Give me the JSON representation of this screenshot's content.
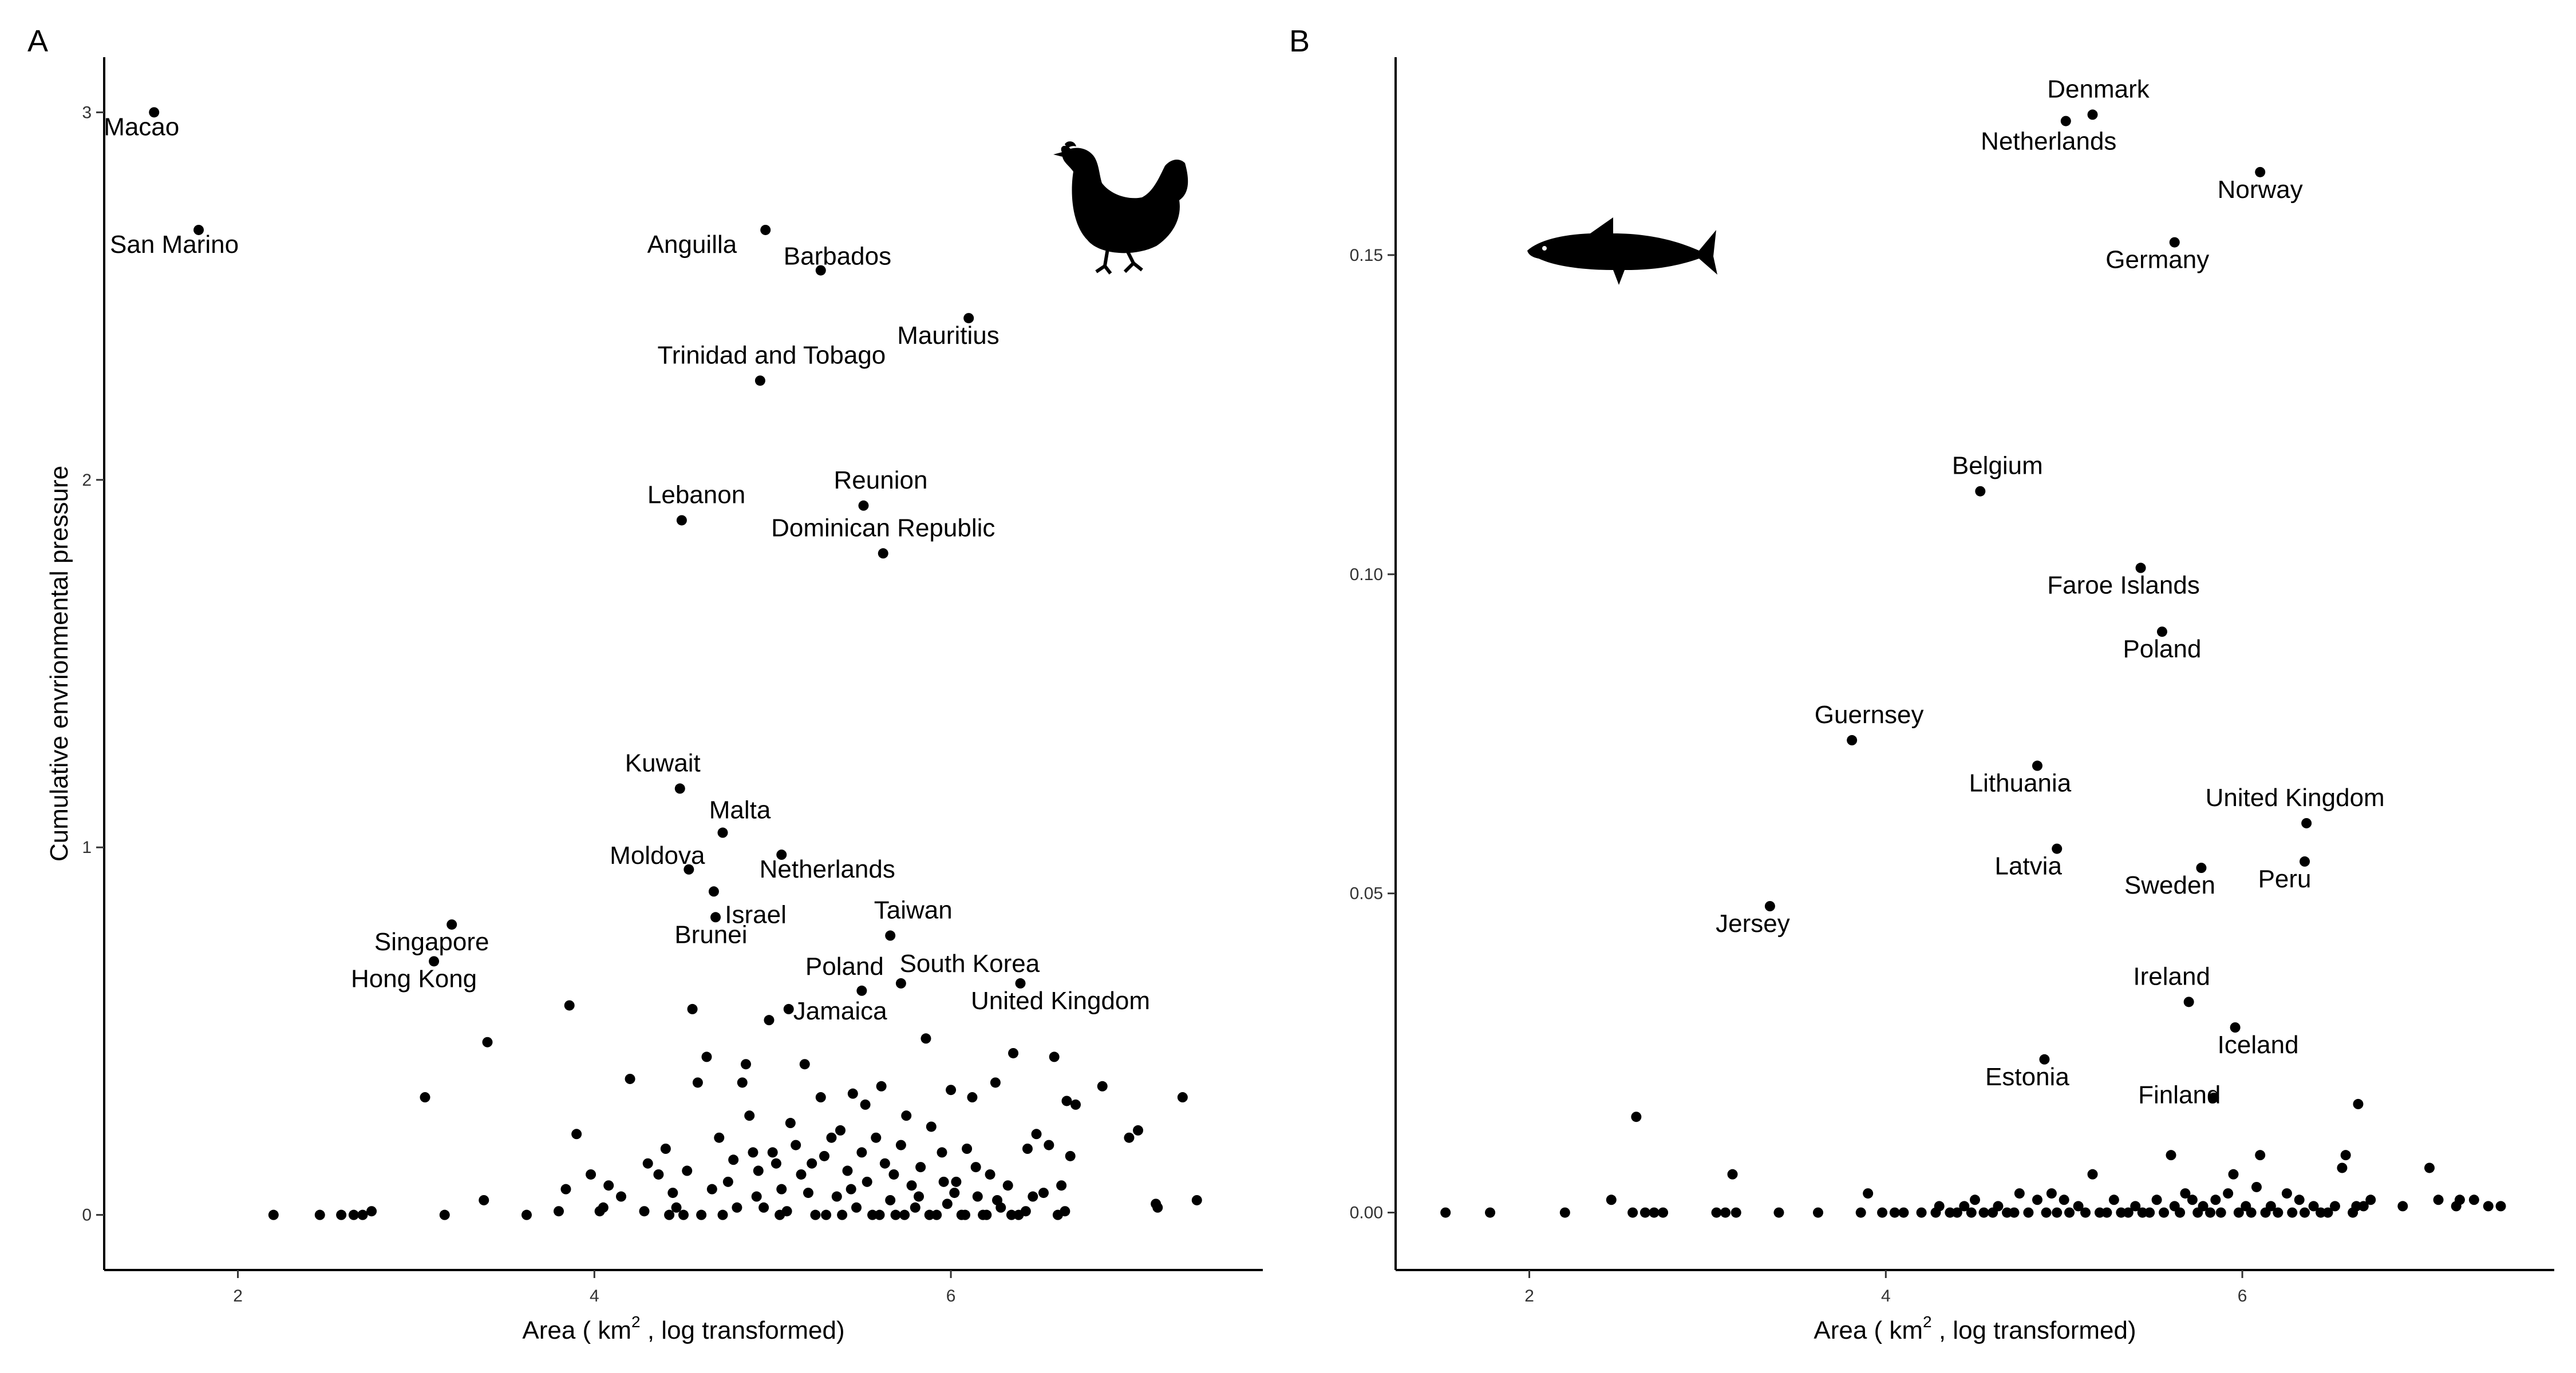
{
  "chart_data": [
    {
      "type": "scatter",
      "panel": "A",
      "animal_icon": "chicken-icon",
      "title": "",
      "xlabel": {
        "prefix": "Area ( ",
        "unit": "km",
        "sup": "2",
        "suffix": " , log transformed)"
      },
      "ylabel": "Cumulative envrionmental pressure",
      "xlim": [
        1.25,
        7.75
      ],
      "ylim": [
        -0.15,
        3.15
      ],
      "xticks": [
        2,
        4,
        6
      ],
      "yticks": [
        0,
        1,
        2,
        3
      ],
      "grid": false,
      "labeled_points": [
        {
          "label": "Macao",
          "x": 1.53,
          "y": 3.0
        },
        {
          "label": "San Marino",
          "x": 1.78,
          "y": 2.68
        },
        {
          "label": "Anguilla",
          "x": 4.96,
          "y": 2.68
        },
        {
          "label": "Barbados",
          "x": 5.27,
          "y": 2.57
        },
        {
          "label": "Mauritius",
          "x": 6.1,
          "y": 2.44
        },
        {
          "label": "Trinidad and Tobago",
          "x": 4.93,
          "y": 2.27
        },
        {
          "label": "Lebanon",
          "x": 4.49,
          "y": 1.89
        },
        {
          "label": "Reunion",
          "x": 5.51,
          "y": 1.93
        },
        {
          "label": "Dominican Republic",
          "x": 5.62,
          "y": 1.8
        },
        {
          "label": "Kuwait",
          "x": 4.48,
          "y": 1.16
        },
        {
          "label": "Malta",
          "x": 4.72,
          "y": 1.04
        },
        {
          "label": "Moldova",
          "x": 4.53,
          "y": 0.94
        },
        {
          "label": "Netherlands",
          "x": 5.05,
          "y": 0.98
        },
        {
          "label": "Israel",
          "x": 4.68,
          "y": 0.81
        },
        {
          "label": "Brunei",
          "x": 4.67,
          "y": 0.88
        },
        {
          "label": "Singapore",
          "x": 3.2,
          "y": 0.79
        },
        {
          "label": "Hong Kong",
          "x": 3.1,
          "y": 0.69
        },
        {
          "label": "Taiwan",
          "x": 5.66,
          "y": 0.76
        },
        {
          "label": "Poland",
          "x": 5.5,
          "y": 0.61
        },
        {
          "label": "South Korea",
          "x": 5.72,
          "y": 0.63
        },
        {
          "label": "Jamaica",
          "x": 5.09,
          "y": 0.56
        },
        {
          "label": "United Kingdom",
          "x": 6.39,
          "y": 0.63
        }
      ],
      "points": [
        [
          2.2,
          0.0
        ],
        [
          2.46,
          0.0
        ],
        [
          2.58,
          0.0
        ],
        [
          2.65,
          0.0
        ],
        [
          2.7,
          0.0
        ],
        [
          2.75,
          0.01
        ],
        [
          3.05,
          0.32
        ],
        [
          3.16,
          0.0
        ],
        [
          3.4,
          0.47
        ],
        [
          3.38,
          0.04
        ],
        [
          3.62,
          0.0
        ],
        [
          3.8,
          0.01
        ],
        [
          3.84,
          0.07
        ],
        [
          3.86,
          0.57
        ],
        [
          3.9,
          0.22
        ],
        [
          3.98,
          0.11
        ],
        [
          4.03,
          0.01
        ],
        [
          4.08,
          0.08
        ],
        [
          4.2,
          0.37
        ],
        [
          4.3,
          0.14
        ],
        [
          4.28,
          0.01
        ],
        [
          4.36,
          0.11
        ],
        [
          4.4,
          0.18
        ],
        [
          4.44,
          0.06
        ],
        [
          4.46,
          0.02
        ],
        [
          4.5,
          0.0
        ],
        [
          4.52,
          0.12
        ],
        [
          4.55,
          0.56
        ],
        [
          4.58,
          0.36
        ],
        [
          4.63,
          0.43
        ],
        [
          4.66,
          0.07
        ],
        [
          4.7,
          0.21
        ],
        [
          4.72,
          0.0
        ],
        [
          4.75,
          0.09
        ],
        [
          4.8,
          0.02
        ],
        [
          4.83,
          0.36
        ],
        [
          4.87,
          0.27
        ],
        [
          4.89,
          0.17
        ],
        [
          4.92,
          0.12
        ],
        [
          4.95,
          0.02
        ],
        [
          4.98,
          0.53
        ],
        [
          5.0,
          0.17
        ],
        [
          5.02,
          0.14
        ],
        [
          5.05,
          0.07
        ],
        [
          5.08,
          0.01
        ],
        [
          5.1,
          0.25
        ],
        [
          5.13,
          0.19
        ],
        [
          5.16,
          0.11
        ],
        [
          5.2,
          0.06
        ],
        [
          5.24,
          0.0
        ],
        [
          5.27,
          0.32
        ],
        [
          5.29,
          0.16
        ],
        [
          5.33,
          0.21
        ],
        [
          5.36,
          0.05
        ],
        [
          5.39,
          0.0
        ],
        [
          5.42,
          0.12
        ],
        [
          5.45,
          0.33
        ],
        [
          5.47,
          0.02
        ],
        [
          5.5,
          0.17
        ],
        [
          5.53,
          0.09
        ],
        [
          5.56,
          0.0
        ],
        [
          5.58,
          0.21
        ],
        [
          5.61,
          0.35
        ],
        [
          5.63,
          0.14
        ],
        [
          5.66,
          0.04
        ],
        [
          5.69,
          0.0
        ],
        [
          5.72,
          0.19
        ],
        [
          5.75,
          0.27
        ],
        [
          5.78,
          0.08
        ],
        [
          5.8,
          0.02
        ],
        [
          5.83,
          0.13
        ],
        [
          5.86,
          0.48
        ],
        [
          5.89,
          0.24
        ],
        [
          5.92,
          0.0
        ],
        [
          5.95,
          0.17
        ],
        [
          5.98,
          0.03
        ],
        [
          6.0,
          0.34
        ],
        [
          6.03,
          0.09
        ],
        [
          6.06,
          0.0
        ],
        [
          6.09,
          0.18
        ],
        [
          6.12,
          0.32
        ],
        [
          6.15,
          0.05
        ],
        [
          6.18,
          0.0
        ],
        [
          6.22,
          0.11
        ],
        [
          6.25,
          0.36
        ],
        [
          6.28,
          0.02
        ],
        [
          6.32,
          0.08
        ],
        [
          6.35,
          0.44
        ],
        [
          6.38,
          0.0
        ],
        [
          6.43,
          0.18
        ],
        [
          6.48,
          0.22
        ],
        [
          6.52,
          0.06
        ],
        [
          6.55,
          0.19
        ],
        [
          6.58,
          0.43
        ],
        [
          6.62,
          0.08
        ],
        [
          6.65,
          0.31
        ],
        [
          6.67,
          0.16
        ],
        [
          6.7,
          0.3
        ],
        [
          6.85,
          0.35
        ],
        [
          7.0,
          0.21
        ],
        [
          7.05,
          0.23
        ],
        [
          7.15,
          0.03
        ],
        [
          7.16,
          0.02
        ],
        [
          7.3,
          0.32
        ],
        [
          7.38,
          0.04
        ],
        [
          4.05,
          0.02
        ],
        [
          4.15,
          0.05
        ],
        [
          4.42,
          0.0
        ],
        [
          4.6,
          0.0
        ],
        [
          4.78,
          0.15
        ],
        [
          4.85,
          0.41
        ],
        [
          4.91,
          0.05
        ],
        [
          5.04,
          0.0
        ],
        [
          5.18,
          0.41
        ],
        [
          5.22,
          0.14
        ],
        [
          5.3,
          0.0
        ],
        [
          5.38,
          0.23
        ],
        [
          5.44,
          0.07
        ],
        [
          5.52,
          0.3
        ],
        [
          5.6,
          0.0
        ],
        [
          5.68,
          0.11
        ],
        [
          5.74,
          0.0
        ],
        [
          5.82,
          0.05
        ],
        [
          5.88,
          0.0
        ],
        [
          5.96,
          0.09
        ],
        [
          6.02,
          0.06
        ],
        [
          6.08,
          0.0
        ],
        [
          6.14,
          0.13
        ],
        [
          6.2,
          0.0
        ],
        [
          6.26,
          0.04
        ],
        [
          6.34,
          0.0
        ],
        [
          6.42,
          0.01
        ],
        [
          6.46,
          0.05
        ],
        [
          6.6,
          0.0
        ],
        [
          6.64,
          0.01
        ]
      ]
    },
    {
      "type": "scatter",
      "panel": "B",
      "animal_icon": "salmon-icon",
      "title": "",
      "xlabel": {
        "prefix": "Area ( ",
        "unit": "km",
        "sup": "2",
        "suffix": " , log transformed)"
      },
      "ylabel": "",
      "xlim": [
        1.25,
        7.75
      ],
      "ylim": [
        -0.009,
        0.181
      ],
      "xticks": [
        2,
        4,
        6
      ],
      "yticks": [
        0.0,
        0.05,
        0.1,
        0.15
      ],
      "ytick_labels": [
        "0.00",
        "0.05",
        "0.10",
        "0.15"
      ],
      "grid": false,
      "labeled_points": [
        {
          "label": "Denmark",
          "x": 5.16,
          "y": 0.172
        },
        {
          "label": "Netherlands",
          "x": 5.01,
          "y": 0.171
        },
        {
          "label": "Norway",
          "x": 6.1,
          "y": 0.163
        },
        {
          "label": "Germany",
          "x": 5.62,
          "y": 0.152
        },
        {
          "label": "Belgium",
          "x": 4.53,
          "y": 0.113
        },
        {
          "label": "Faroe Islands",
          "x": 5.43,
          "y": 0.101
        },
        {
          "label": "Poland",
          "x": 5.55,
          "y": 0.091
        },
        {
          "label": "Guernsey",
          "x": 3.81,
          "y": 0.074
        },
        {
          "label": "Lithuania",
          "x": 4.85,
          "y": 0.07
        },
        {
          "label": "United Kingdom",
          "x": 6.36,
          "y": 0.061
        },
        {
          "label": "Latvia",
          "x": 4.96,
          "y": 0.057
        },
        {
          "label": "Sweden",
          "x": 5.77,
          "y": 0.054
        },
        {
          "label": "Peru",
          "x": 6.35,
          "y": 0.055
        },
        {
          "label": "Jersey",
          "x": 3.35,
          "y": 0.048
        },
        {
          "label": "Ireland",
          "x": 5.7,
          "y": 0.033
        },
        {
          "label": "Iceland",
          "x": 5.96,
          "y": 0.029
        },
        {
          "label": "Estonia",
          "x": 4.89,
          "y": 0.024
        },
        {
          "label": "Finland",
          "x": 5.84,
          "y": 0.018
        }
      ],
      "points": [
        [
          1.53,
          0.0
        ],
        [
          1.78,
          0.0
        ],
        [
          2.2,
          0.0
        ],
        [
          2.46,
          0.002
        ],
        [
          2.58,
          0.0
        ],
        [
          2.6,
          0.015
        ],
        [
          2.65,
          0.0
        ],
        [
          2.7,
          0.0
        ],
        [
          2.75,
          0.0
        ],
        [
          3.05,
          0.0
        ],
        [
          3.1,
          0.0
        ],
        [
          3.14,
          0.006
        ],
        [
          3.16,
          0.0
        ],
        [
          3.4,
          0.0
        ],
        [
          3.62,
          0.0
        ],
        [
          3.86,
          0.0
        ],
        [
          3.9,
          0.003
        ],
        [
          3.98,
          0.0
        ],
        [
          4.05,
          0.0
        ],
        [
          4.1,
          0.0
        ],
        [
          4.2,
          0.0
        ],
        [
          4.28,
          0.0
        ],
        [
          4.3,
          0.001
        ],
        [
          4.36,
          0.0
        ],
        [
          4.4,
          0.0
        ],
        [
          4.44,
          0.001
        ],
        [
          4.48,
          0.0
        ],
        [
          4.5,
          0.002
        ],
        [
          4.55,
          0.0
        ],
        [
          4.6,
          0.0
        ],
        [
          4.63,
          0.001
        ],
        [
          4.68,
          0.0
        ],
        [
          4.72,
          0.0
        ],
        [
          4.75,
          0.003
        ],
        [
          4.8,
          0.0
        ],
        [
          4.85,
          0.002
        ],
        [
          4.9,
          0.0
        ],
        [
          4.93,
          0.003
        ],
        [
          4.96,
          0.0
        ],
        [
          5.0,
          0.002
        ],
        [
          5.03,
          0.0
        ],
        [
          5.08,
          0.001
        ],
        [
          5.12,
          0.0
        ],
        [
          5.16,
          0.006
        ],
        [
          5.2,
          0.0
        ],
        [
          5.24,
          0.0
        ],
        [
          5.28,
          0.002
        ],
        [
          5.32,
          0.0
        ],
        [
          5.36,
          0.0
        ],
        [
          5.4,
          0.001
        ],
        [
          5.44,
          0.0
        ],
        [
          5.48,
          0.0
        ],
        [
          5.52,
          0.002
        ],
        [
          5.56,
          0.0
        ],
        [
          5.6,
          0.009
        ],
        [
          5.62,
          0.001
        ],
        [
          5.65,
          0.0
        ],
        [
          5.68,
          0.003
        ],
        [
          5.72,
          0.002
        ],
        [
          5.75,
          0.0
        ],
        [
          5.78,
          0.001
        ],
        [
          5.82,
          0.0
        ],
        [
          5.85,
          0.002
        ],
        [
          5.88,
          0.0
        ],
        [
          5.92,
          0.003
        ],
        [
          5.95,
          0.006
        ],
        [
          5.98,
          0.0
        ],
        [
          6.02,
          0.001
        ],
        [
          6.05,
          0.0
        ],
        [
          6.08,
          0.004
        ],
        [
          6.1,
          0.009
        ],
        [
          6.13,
          0.0
        ],
        [
          6.16,
          0.001
        ],
        [
          6.2,
          0.0
        ],
        [
          6.25,
          0.003
        ],
        [
          6.28,
          0.0
        ],
        [
          6.32,
          0.002
        ],
        [
          6.35,
          0.0
        ],
        [
          6.4,
          0.001
        ],
        [
          6.44,
          0.0
        ],
        [
          6.48,
          0.0
        ],
        [
          6.52,
          0.001
        ],
        [
          6.56,
          0.007
        ],
        [
          6.58,
          0.009
        ],
        [
          6.62,
          0.0
        ],
        [
          6.64,
          0.001
        ],
        [
          6.65,
          0.017
        ],
        [
          6.68,
          0.001
        ],
        [
          6.72,
          0.002
        ],
        [
          6.9,
          0.001
        ],
        [
          7.05,
          0.007
        ],
        [
          7.1,
          0.002
        ],
        [
          7.2,
          0.001
        ],
        [
          7.22,
          0.002
        ],
        [
          7.3,
          0.002
        ],
        [
          7.38,
          0.001
        ],
        [
          7.45,
          0.001
        ]
      ]
    }
  ]
}
